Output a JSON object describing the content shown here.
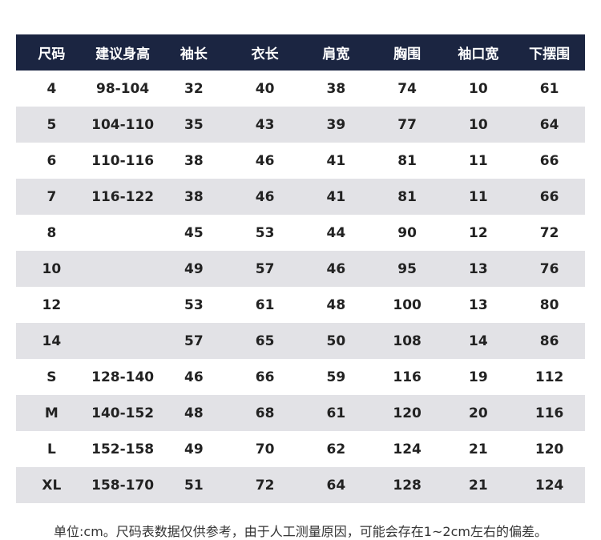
{
  "table": {
    "header": [
      "尺码",
      "建议身高",
      "袖长",
      "衣长",
      "肩宽",
      "胸围",
      "袖口宽",
      "下摆围"
    ],
    "rows": [
      [
        "4",
        "98-104",
        32,
        40,
        38,
        74,
        10,
        61
      ],
      [
        "5",
        "104-110",
        35,
        43,
        39,
        77,
        10,
        64
      ],
      [
        "6",
        "110-116",
        38,
        46,
        41,
        81,
        11,
        66
      ],
      [
        "7",
        "116-122",
        38,
        46,
        41,
        81,
        11,
        66
      ],
      [
        "8",
        null,
        45,
        53,
        44,
        90,
        12,
        72
      ],
      [
        "10",
        null,
        49,
        57,
        46,
        95,
        13,
        76
      ],
      [
        "12",
        null,
        53,
        61,
        48,
        100,
        13,
        80
      ],
      [
        "14",
        null,
        57,
        65,
        50,
        108,
        14,
        86
      ],
      [
        "S",
        "128-140",
        46,
        66,
        59,
        116,
        19,
        112
      ],
      [
        "M",
        "140-152",
        48,
        68,
        61,
        120,
        20,
        116
      ],
      [
        "L",
        "152-158",
        49,
        70,
        62,
        124,
        21,
        120
      ],
      [
        "XL",
        "158-170",
        51,
        72,
        64,
        128,
        21,
        124
      ]
    ]
  },
  "note": "单位:cm。尺码表数据仅供参考，由于人工测量原因，可能会存在1~2cm左右的偏差。"
}
